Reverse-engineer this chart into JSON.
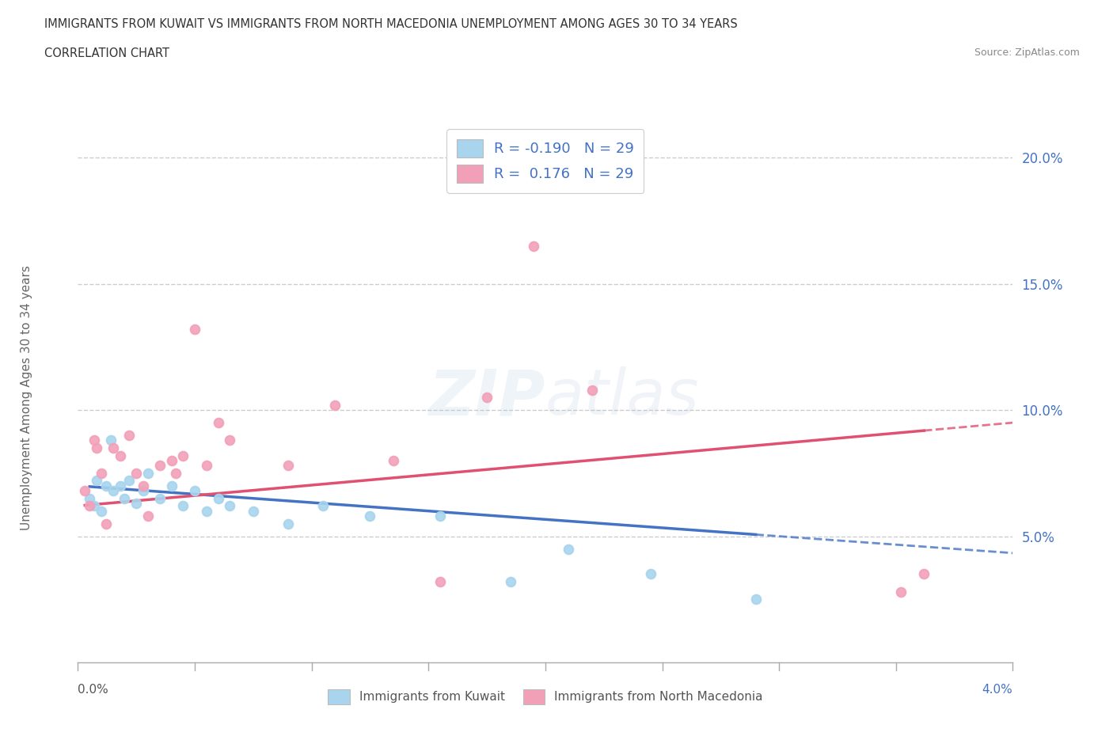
{
  "title_line1": "IMMIGRANTS FROM KUWAIT VS IMMIGRANTS FROM NORTH MACEDONIA UNEMPLOYMENT AMONG AGES 30 TO 34 YEARS",
  "title_line2": "CORRELATION CHART",
  "source": "Source: ZipAtlas.com",
  "ylabel": "Unemployment Among Ages 30 to 34 years",
  "legend_label1": "Immigrants from Kuwait",
  "legend_label2": "Immigrants from North Macedonia",
  "color_kuwait": "#A8D4EE",
  "color_north_mac": "#F2A0B8",
  "color_trend_kuwait": "#4472C4",
  "color_trend_north_mac": "#E05070",
  "color_text_blue": "#4472C4",
  "color_axis": "#AAAAAA",
  "color_grid": "#CCCCCC",
  "color_title": "#333333",
  "color_source": "#888888",
  "color_ylabel": "#666666",
  "background_color": "#FFFFFF",
  "xlim": [
    0.0,
    4.0
  ],
  "ylim": [
    0.0,
    21.0
  ],
  "ytick_vals": [
    5.0,
    10.0,
    15.0,
    20.0
  ],
  "ytick_labels": [
    "5.0%",
    "10.0%",
    "15.0%",
    "20.0%"
  ],
  "R_kuwait": -0.19,
  "N_kuwait": 29,
  "R_north_mac": 0.176,
  "N_north_mac": 29,
  "kuwait_x": [
    0.05,
    0.07,
    0.08,
    0.1,
    0.12,
    0.14,
    0.15,
    0.18,
    0.2,
    0.22,
    0.25,
    0.28,
    0.3,
    0.35,
    0.4,
    0.45,
    0.5,
    0.55,
    0.6,
    0.65,
    0.75,
    0.9,
    1.05,
    1.25,
    1.55,
    1.85,
    2.1,
    2.45,
    2.9
  ],
  "kuwait_y": [
    6.5,
    6.2,
    7.2,
    6.0,
    7.0,
    8.8,
    6.8,
    7.0,
    6.5,
    7.2,
    6.3,
    6.8,
    7.5,
    6.5,
    7.0,
    6.2,
    6.8,
    6.0,
    6.5,
    6.2,
    6.0,
    5.5,
    6.2,
    5.8,
    5.8,
    3.2,
    4.5,
    3.5,
    2.5
  ],
  "north_mac_x": [
    0.03,
    0.05,
    0.07,
    0.08,
    0.1,
    0.12,
    0.15,
    0.18,
    0.22,
    0.25,
    0.28,
    0.3,
    0.35,
    0.4,
    0.42,
    0.45,
    0.5,
    0.55,
    0.6,
    0.65,
    0.9,
    1.1,
    1.35,
    1.55,
    1.75,
    1.95,
    2.2,
    3.52,
    3.62
  ],
  "north_mac_y": [
    6.8,
    6.2,
    8.8,
    8.5,
    7.5,
    5.5,
    8.5,
    8.2,
    9.0,
    7.5,
    7.0,
    5.8,
    7.8,
    8.0,
    7.5,
    8.2,
    13.2,
    7.8,
    9.5,
    8.8,
    7.8,
    10.2,
    8.0,
    3.2,
    10.5,
    16.5,
    10.8,
    2.8,
    3.5
  ],
  "watermark_text": "ZIPatlas",
  "watermark_alpha": 0.15,
  "watermark_size": 58
}
